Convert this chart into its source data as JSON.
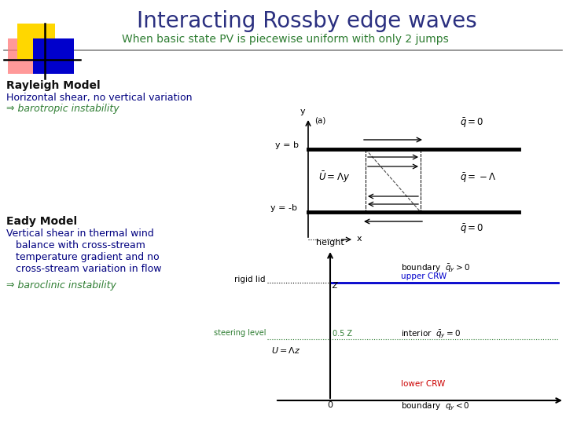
{
  "title": "Interacting Rossby edge waves",
  "title_color": "#2B3080",
  "subtitle": "When basic state PV is piecewise uniform with only 2 jumps",
  "subtitle_color": "#2E7D32",
  "bg_color": "#FFFFFF",
  "rayleigh_header": "Rayleigh Model",
  "rayleigh_line1": "Horizontal shear, no vertical variation",
  "rayleigh_line2": "⇒ barotropic instability",
  "eady_header": "Eady Model",
  "eady_line1": "Vertical shear in thermal wind",
  "eady_line2": "   balance with cross-stream",
  "eady_line3": "   temperature gradient and no",
  "eady_line4": "   cross-stream variation in flow",
  "eady_line5": "⇒ baroclinic instability",
  "logo_yellow": "#FFD700",
  "logo_blue": "#0000CC",
  "logo_pink": "#FF7777",
  "text_blue": "#000080",
  "text_green": "#2E7D32",
  "text_red": "#CC0000",
  "label_color": "#111111",
  "upper_crw_color": "#0000CC",
  "lower_crw_color": "#CC0000",
  "steering_color": "#2E7D32"
}
